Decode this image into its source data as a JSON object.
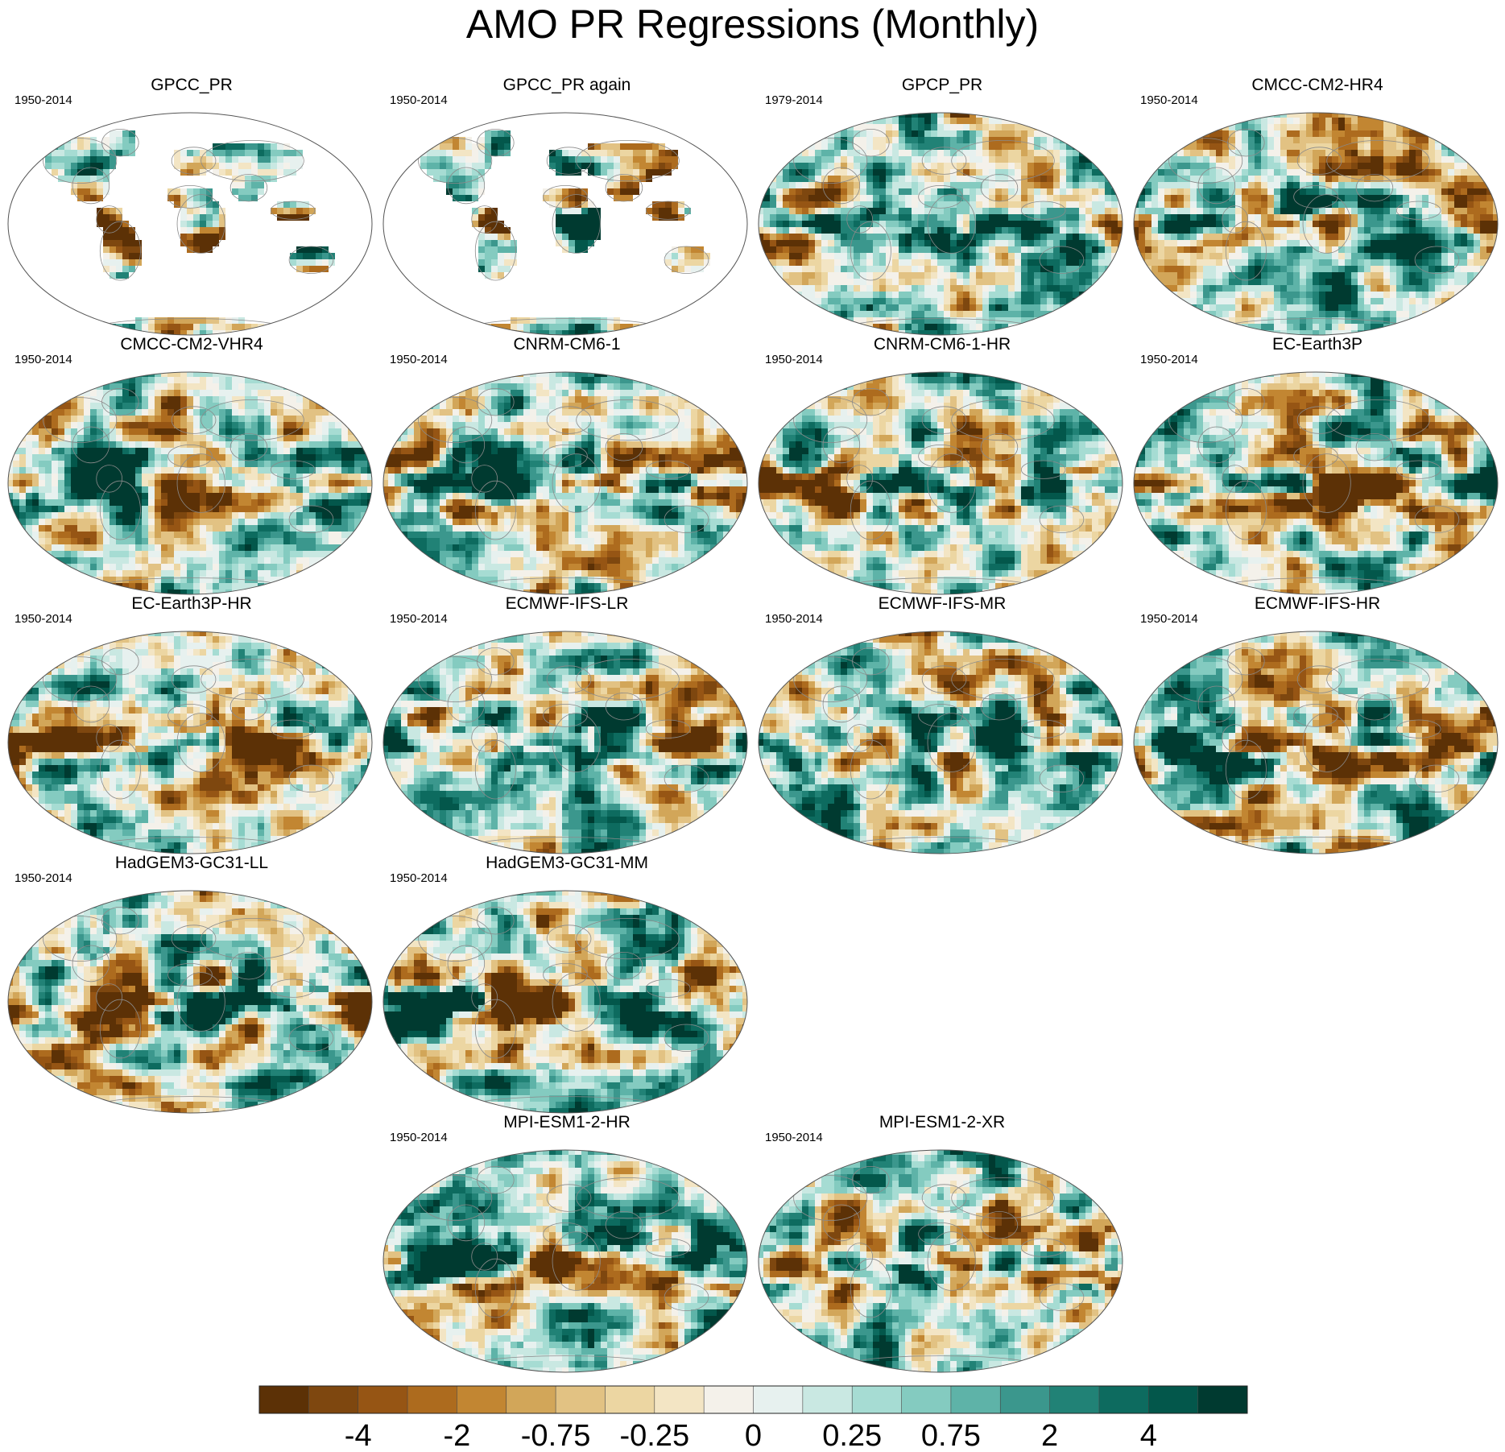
{
  "title": "AMO PR Regressions (Monthly)",
  "chart_data": {
    "type": "heatmap",
    "title": "AMO PR Regressions (Monthly)",
    "colorbar": {
      "tick_labels": [
        "-4",
        "-2",
        "-0.75",
        "-0.25",
        "0",
        "0.25",
        "0.75",
        "2",
        "4"
      ],
      "colors": [
        "#5c3106",
        "#7e470f",
        "#965514",
        "#ad6b1e",
        "#c28632",
        "#d2a659",
        "#e2c283",
        "#ecd6a2",
        "#f3e5c4",
        "#f4f1ea",
        "#e7f1ef",
        "#c9e8e2",
        "#a6dcd3",
        "#84cbc0",
        "#5eb3a8",
        "#3b978d",
        "#218276",
        "#0d6b5f",
        "#03574b",
        "#003a30"
      ]
    },
    "panels": [
      {
        "name": "GPCC_PR",
        "period": "1950-2014",
        "land_only": true
      },
      {
        "name": "GPCC_PR again",
        "period": "1950-2014",
        "land_only": true
      },
      {
        "name": "GPCP_PR",
        "period": "1979-2014",
        "land_only": false
      },
      {
        "name": "CMCC-CM2-HR4",
        "period": "1950-2014",
        "land_only": false
      },
      {
        "name": "CMCC-CM2-VHR4",
        "period": "1950-2014",
        "land_only": false
      },
      {
        "name": "CNRM-CM6-1",
        "period": "1950-2014",
        "land_only": false
      },
      {
        "name": "CNRM-CM6-1-HR",
        "period": "1950-2014",
        "land_only": false
      },
      {
        "name": "EC-Earth3P",
        "period": "1950-2014",
        "land_only": false
      },
      {
        "name": "EC-Earth3P-HR",
        "period": "1950-2014",
        "land_only": false
      },
      {
        "name": "ECMWF-IFS-LR",
        "period": "1950-2014",
        "land_only": false
      },
      {
        "name": "ECMWF-IFS-MR",
        "period": "1950-2014",
        "land_only": false
      },
      {
        "name": "ECMWF-IFS-HR",
        "period": "1950-2014",
        "land_only": false
      },
      {
        "name": "HadGEM3-GC31-LL",
        "period": "1950-2014",
        "land_only": false
      },
      {
        "name": "HadGEM3-GC31-MM",
        "period": "1950-2014",
        "land_only": false
      },
      {
        "name": "MPI-ESM1-2-HR",
        "period": "1950-2014",
        "land_only": false
      },
      {
        "name": "MPI-ESM1-2-XR",
        "period": "1950-2014",
        "land_only": false
      }
    ]
  }
}
